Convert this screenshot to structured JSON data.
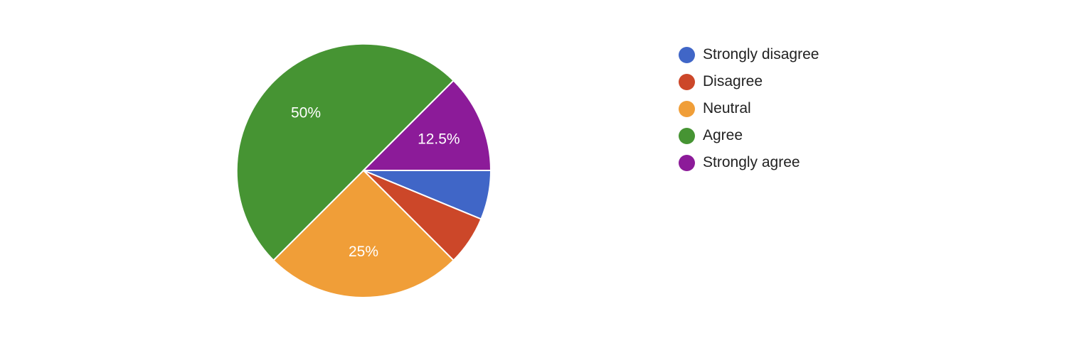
{
  "chart_data": {
    "type": "pie",
    "title": "",
    "categories": [
      "Strongly disagree",
      "Disagree",
      "Neutral",
      "Agree",
      "Strongly agree"
    ],
    "values": [
      6.25,
      6.25,
      25,
      50,
      12.5
    ],
    "data_labels": [
      "",
      "",
      "25%",
      "50%",
      "12.5%"
    ],
    "colors": [
      "#4066c7",
      "#cc4729",
      "#f09e38",
      "#469433",
      "#8c1b99"
    ],
    "legend": {
      "position": "right",
      "entries": [
        "Strongly disagree",
        "Disagree",
        "Neutral",
        "Agree",
        "Strongly agree"
      ]
    }
  }
}
